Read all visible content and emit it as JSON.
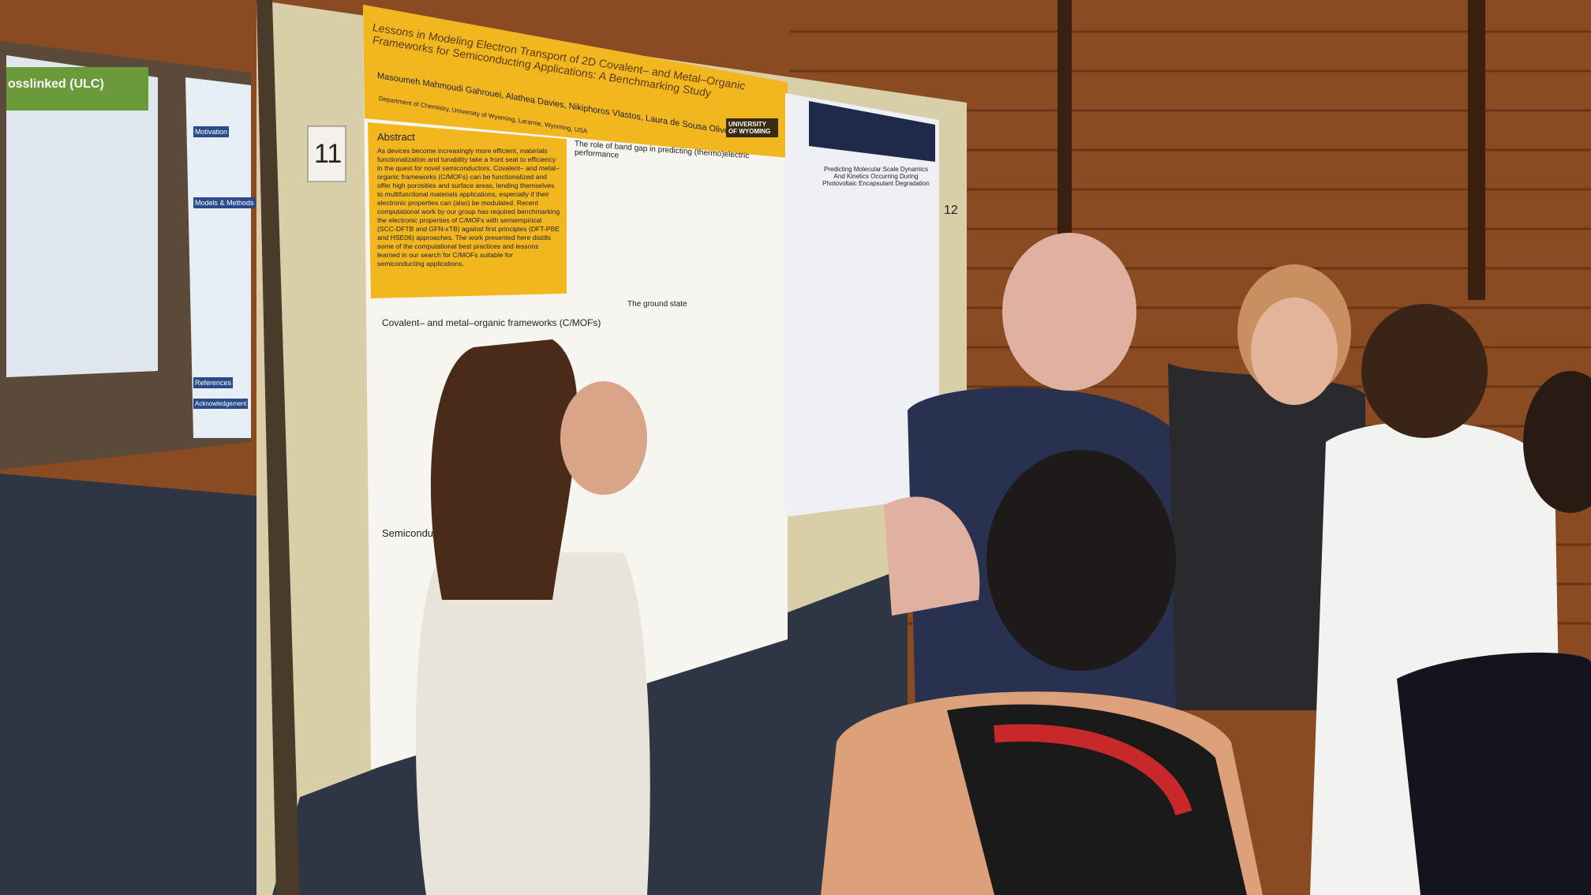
{
  "board_number_left": "11",
  "board_number_right": "12",
  "poster_main": {
    "title": "Lessons in Modeling Electron Transport of 2D Covalent– and Metal–Organic Frameworks for Semiconducting Applications: A Benchmarking Study",
    "authors": "Masoumeh Mahmoudi Gahrouei, Alathea Davies, Nikiphoros Vlastos, Laura de Sousa Oliveira",
    "affiliation": "Department of Chemistry, University of Wyoming, Laramie, Wyoming, USA",
    "logo": "UNIVERSITY OF WYOMING",
    "abstract_heading": "Abstract",
    "abstract": "As devices become increasingly more efficient, materials functionalization and tunability take a front seat to efficiency in the quest for novel semiconductors. Covalent– and metal–organic frameworks (C/MOFs) can be functionalized and offer high porosities and surface areas, lending themselves to multifunctional materials applications, especially if their electronic properties can (also) be modulated. Recent computational work by our group has required benchmarking the electronic properties of C/MOFs with semiempirical (SCC-DFTB and GFN-xTB) against first principles (DFT-PBE and HSE06) approaches. The work presented here distills some of the computational best practices and lessons learned in our search for C/MOFs suitable for semiconducting applications.",
    "sections": [
      "The role of band gap in predicting (thermo)electric performance",
      "Covalent– and metal–organic frameworks (C/MOFs)",
      "The ground state",
      "Semiconducting"
    ]
  },
  "poster_right": {
    "title": "Predicting Molecular Scale Dynamics And Kinetics Occurring During Photovoltaic Encapsulant Degradation"
  },
  "poster_left": {
    "title_fragment": "osslinked (ULC)",
    "sections": [
      "Motivation",
      "Models & Methods",
      "References",
      "Acknowledgement"
    ]
  }
}
